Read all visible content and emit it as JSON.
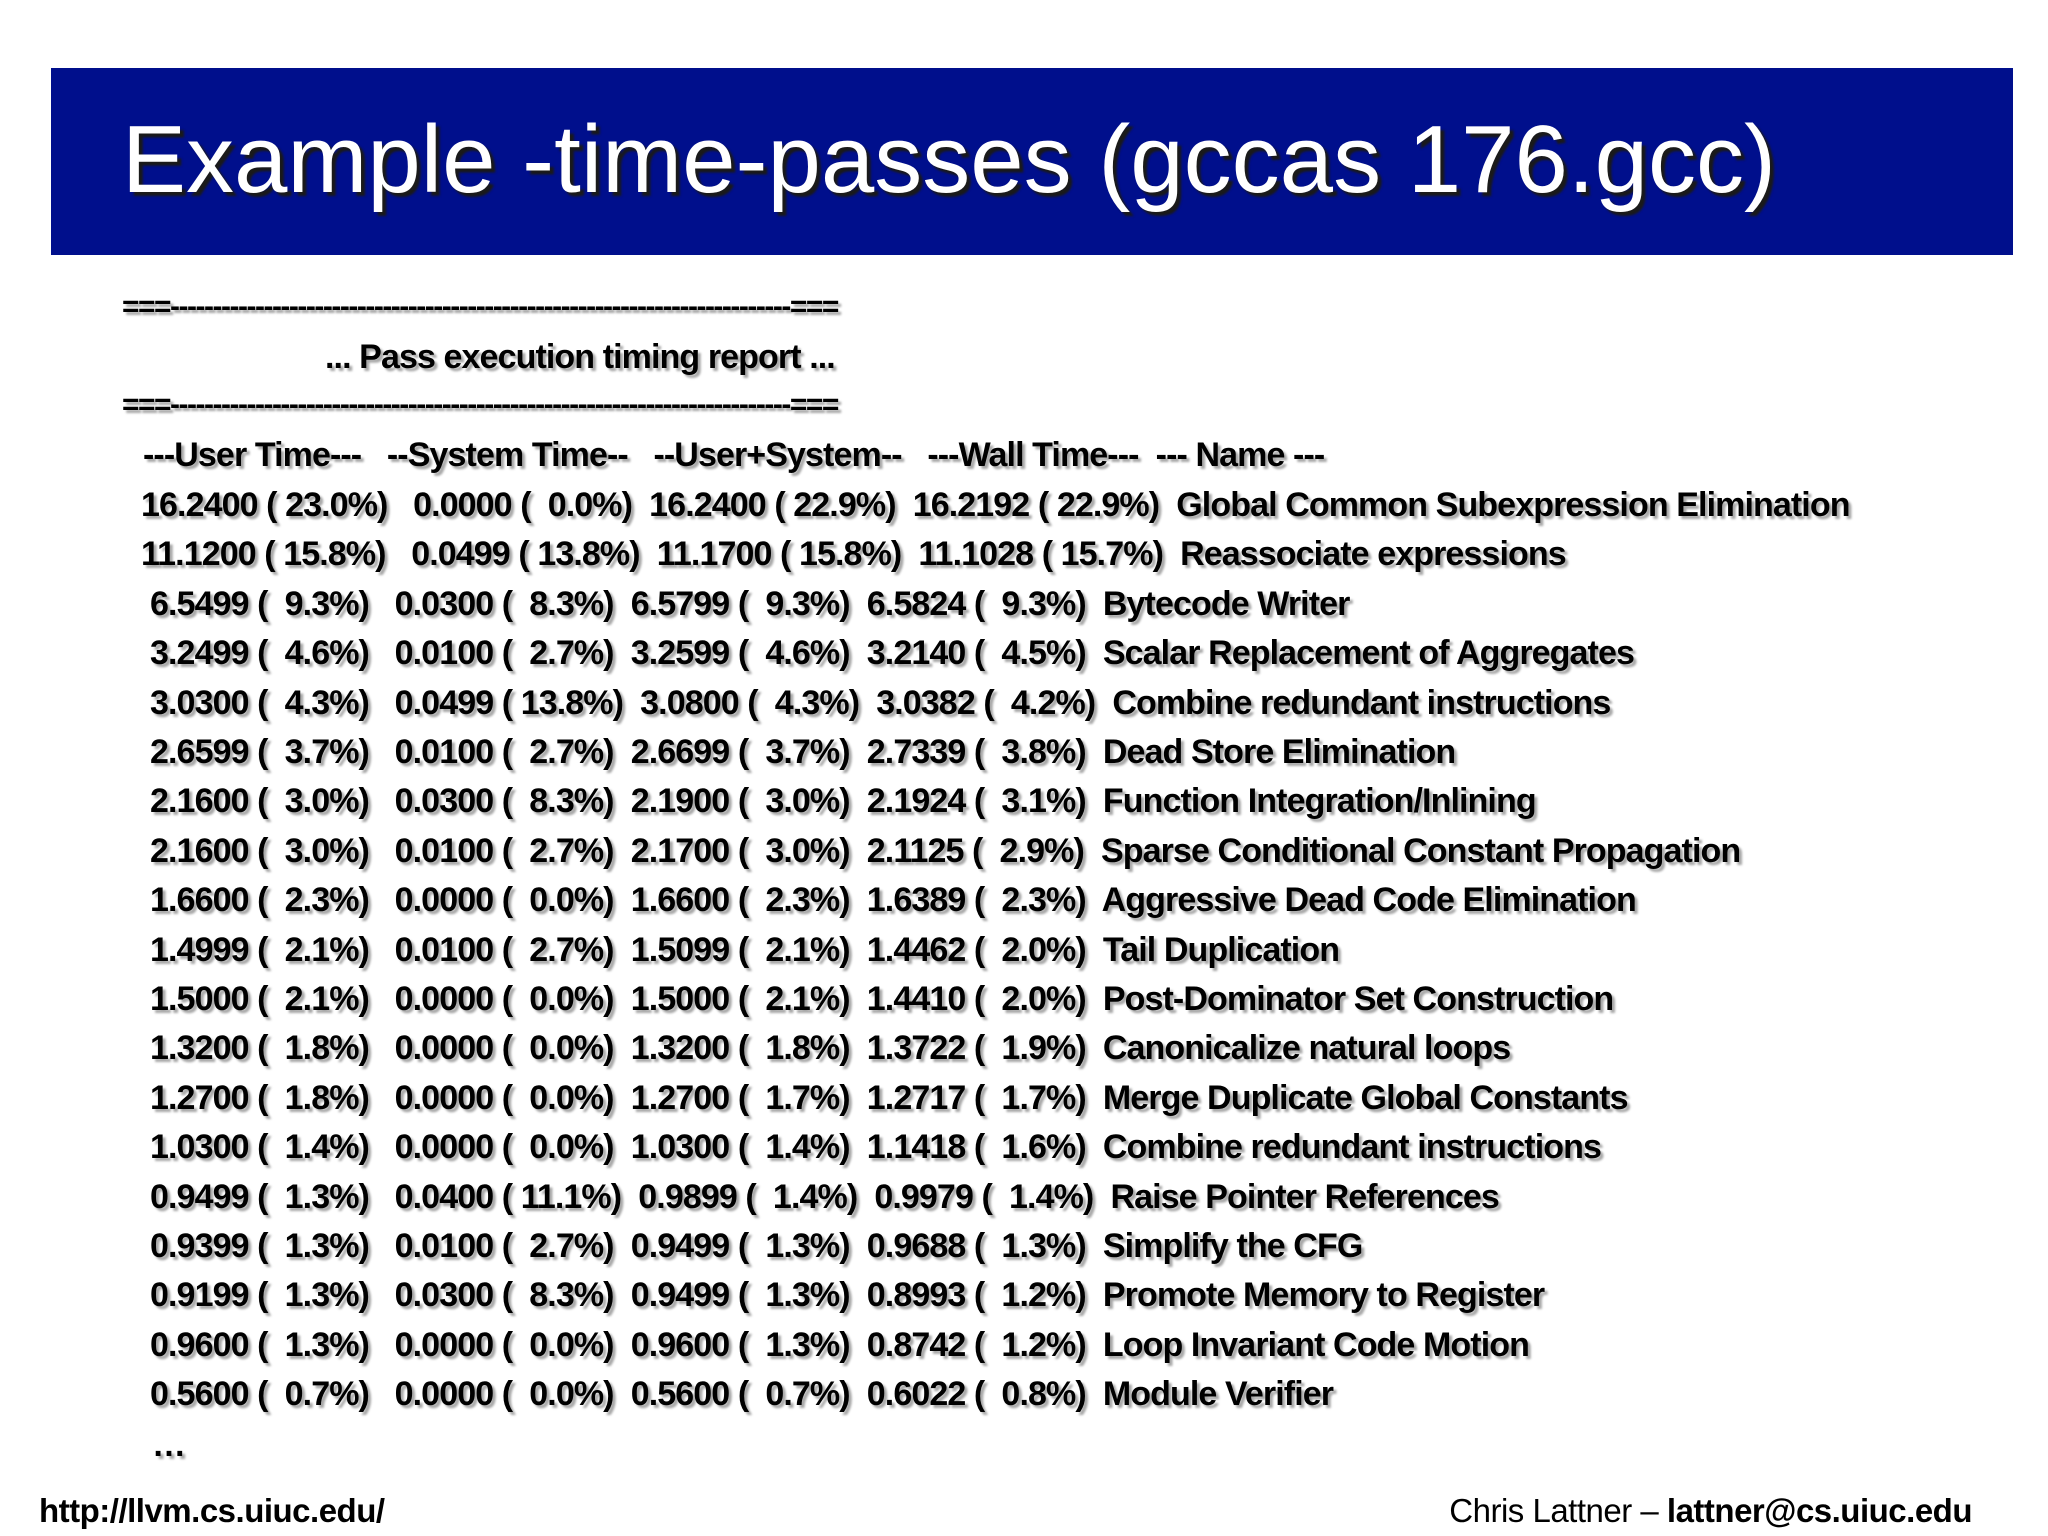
{
  "slide": {
    "title": "Example -time-passes (gccas 176.gcc)",
    "title_bar_color": "#000f8c"
  },
  "report": {
    "separator": "===-------------------------------------------------------------------------===",
    "subtitle": "... Pass execution timing report ...",
    "headers": [
      "---User Time---",
      "--System Time--",
      "--User+System--",
      "---Wall Time---",
      "--- Name ---"
    ],
    "rows": [
      {
        "user": "16.2400 ( 23.0%)",
        "system": "0.0000 (  0.0%)",
        "user_system": "16.2400 ( 22.9%)",
        "wall": "16.2192 ( 22.9%)",
        "name": "Global Common Subexpression Elimination"
      },
      {
        "user": "11.1200 ( 15.8%)",
        "system": "0.0499 ( 13.8%)",
        "user_system": "11.1700 ( 15.8%)",
        "wall": "11.1028 ( 15.7%)",
        "name": "Reassociate expressions"
      },
      {
        "user": "6.5499 (  9.3%)",
        "system": "0.0300 (  8.3%)",
        "user_system": "6.5799 (  9.3%)",
        "wall": "6.5824 (  9.3%)",
        "name": "Bytecode Writer"
      },
      {
        "user": "3.2499 (  4.6%)",
        "system": "0.0100 (  2.7%)",
        "user_system": "3.2599 (  4.6%)",
        "wall": "3.2140 (  4.5%)",
        "name": "Scalar Replacement of Aggregates"
      },
      {
        "user": "3.0300 (  4.3%)",
        "system": "0.0499 ( 13.8%)",
        "user_system": "3.0800 (  4.3%)",
        "wall": "3.0382 (  4.2%)",
        "name": "Combine redundant instructions"
      },
      {
        "user": "2.6599 (  3.7%)",
        "system": "0.0100 (  2.7%)",
        "user_system": "2.6699 (  3.7%)",
        "wall": "2.7339 (  3.8%)",
        "name": "Dead Store Elimination"
      },
      {
        "user": "2.1600 (  3.0%)",
        "system": "0.0300 (  8.3%)",
        "user_system": "2.1900 (  3.0%)",
        "wall": "2.1924 (  3.1%)",
        "name": "Function Integration/Inlining"
      },
      {
        "user": "2.1600 (  3.0%)",
        "system": "0.0100 (  2.7%)",
        "user_system": "2.1700 (  3.0%)",
        "wall": "2.1125 (  2.9%)",
        "name": "Sparse Conditional Constant Propagation"
      },
      {
        "user": "1.6600 (  2.3%)",
        "system": "0.0000 (  0.0%)",
        "user_system": "1.6600 (  2.3%)",
        "wall": "1.6389 (  2.3%)",
        "name": "Aggressive Dead Code Elimination"
      },
      {
        "user": "1.4999 (  2.1%)",
        "system": "0.0100 (  2.7%)",
        "user_system": "1.5099 (  2.1%)",
        "wall": "1.4462 (  2.0%)",
        "name": "Tail Duplication"
      },
      {
        "user": "1.5000 (  2.1%)",
        "system": "0.0000 (  0.0%)",
        "user_system": "1.5000 (  2.1%)",
        "wall": "1.4410 (  2.0%)",
        "name": "Post-Dominator Set Construction"
      },
      {
        "user": "1.3200 (  1.8%)",
        "system": "0.0000 (  0.0%)",
        "user_system": "1.3200 (  1.8%)",
        "wall": "1.3722 (  1.9%)",
        "name": "Canonicalize natural loops"
      },
      {
        "user": "1.2700 (  1.8%)",
        "system": "0.0000 (  0.0%)",
        "user_system": "1.2700 (  1.7%)",
        "wall": "1.2717 (  1.7%)",
        "name": "Merge Duplicate Global Constants"
      },
      {
        "user": "1.0300 (  1.4%)",
        "system": "0.0000 (  0.0%)",
        "user_system": "1.0300 (  1.4%)",
        "wall": "1.1418 (  1.6%)",
        "name": "Combine redundant instructions"
      },
      {
        "user": "0.9499 (  1.3%)",
        "system": "0.0400 ( 11.1%)",
        "user_system": "0.9899 (  1.4%)",
        "wall": "0.9979 (  1.4%)",
        "name": "Raise Pointer References"
      },
      {
        "user": "0.9399 (  1.3%)",
        "system": "0.0100 (  2.7%)",
        "user_system": "0.9499 (  1.3%)",
        "wall": "0.9688 (  1.3%)",
        "name": "Simplify the CFG"
      },
      {
        "user": "0.9199 (  1.3%)",
        "system": "0.0300 (  8.3%)",
        "user_system": "0.9499 (  1.3%)",
        "wall": "0.8993 (  1.2%)",
        "name": "Promote Memory to Register"
      },
      {
        "user": "0.9600 (  1.3%)",
        "system": "0.0000 (  0.0%)",
        "user_system": "0.9600 (  1.3%)",
        "wall": "0.8742 (  1.2%)",
        "name": "Loop Invariant Code Motion"
      },
      {
        "user": "0.5600 (  0.7%)",
        "system": "0.0000 (  0.0%)",
        "user_system": "0.5600 (  0.7%)",
        "wall": "0.6022 (  0.8%)",
        "name": "Module Verifier"
      }
    ],
    "ellipsis": "…"
  },
  "footer": {
    "url": "http://llvm.cs.uiuc.edu/",
    "author": "Chris Lattner – ",
    "email": "lattner@cs.uiuc.edu"
  }
}
